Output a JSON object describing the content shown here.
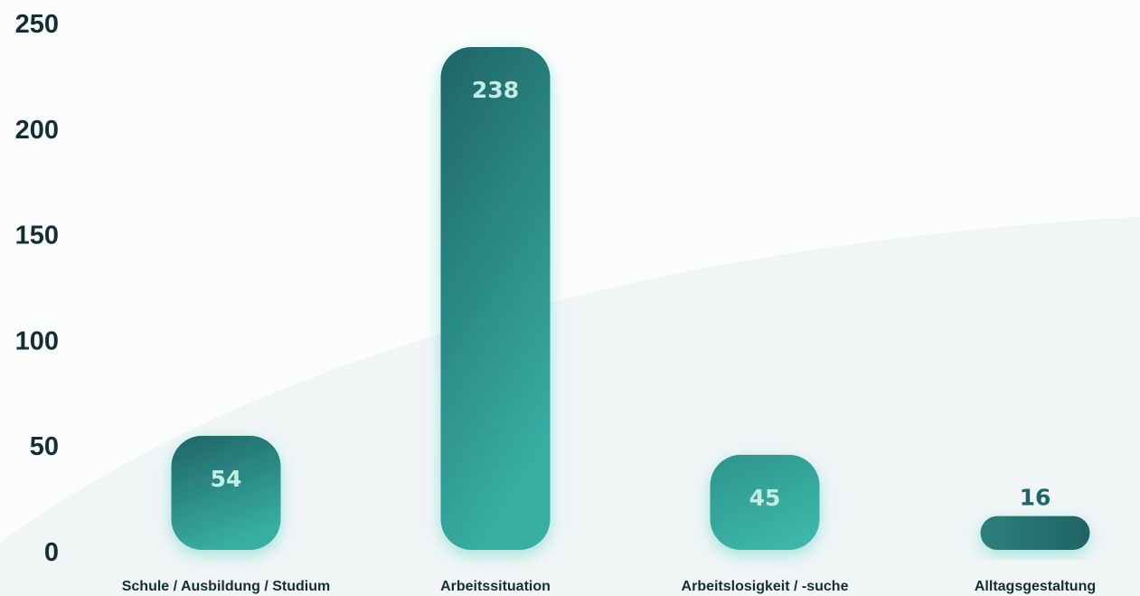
{
  "chart_data": {
    "type": "bar",
    "categories": [
      "Schule / Ausbildung / Studium",
      "Arbeitssituation",
      "Arbeitslosigkeit / -suche",
      "Alltagsgestaltung"
    ],
    "values": [
      54,
      238,
      45,
      16
    ],
    "data_labels": [
      "54",
      "238",
      "45",
      "16"
    ],
    "yticks": [
      "0",
      "50",
      "100",
      "150",
      "200",
      "250"
    ],
    "ylim": [
      0,
      250
    ],
    "grid": true,
    "colors": {
      "bar_dark": "#1f6466",
      "bar_light": "#37ada2",
      "gridline": "#a8e4dc",
      "label_inside": "#c4ece4",
      "label_outside": "#1f6466",
      "text": "#132f35"
    }
  }
}
